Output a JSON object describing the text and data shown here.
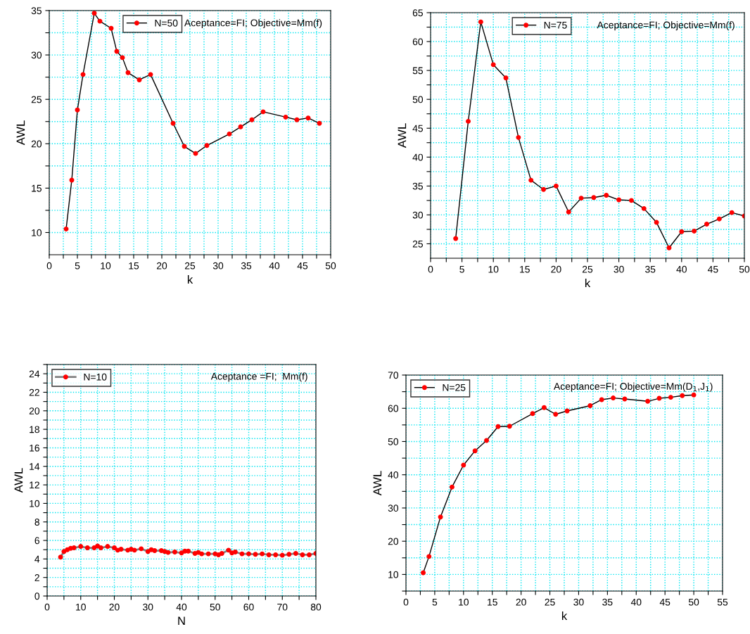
{
  "chart_data": [
    {
      "type": "line",
      "xlabel": "k",
      "ylabel": "AWL",
      "annotations": [
        "Aceptance=FI; Objective=Mm(f)"
      ],
      "grid": true,
      "legend": "top",
      "marker": "circle",
      "line_style": "solid",
      "xlim": [
        0,
        50
      ],
      "ylim": [
        7.5,
        35
      ],
      "xticks": [
        0,
        {
          "value": 2.5,
          "label": null
        },
        5,
        {
          "value": 7.5,
          "label": null
        },
        10,
        {
          "value": 12.5,
          "label": null
        },
        15,
        {
          "value": 17.5,
          "label": null
        },
        20,
        {
          "value": 22.5,
          "label": null
        },
        25,
        {
          "value": 27.5,
          "label": null
        },
        30,
        {
          "value": 32.5,
          "label": null
        },
        35,
        {
          "value": 37.5,
          "label": null
        },
        40,
        {
          "value": 42.5,
          "label": null
        },
        45,
        {
          "value": 47.5,
          "label": null
        },
        50
      ],
      "yticks": [
        10,
        {
          "value": 12.5,
          "label": null
        },
        15,
        {
          "value": 17.5,
          "label": null
        },
        20,
        {
          "value": 22.5,
          "label": null
        },
        25,
        {
          "value": 27.5,
          "label": null
        },
        30,
        {
          "value": 32.5,
          "label": null
        },
        35
      ],
      "series": [
        {
          "name": "N=50",
          "color": "#000000",
          "x": [
            3,
            4,
            5,
            6,
            8,
            9,
            11,
            12,
            13,
            14,
            16,
            18,
            22,
            24,
            26,
            28,
            32,
            34,
            36,
            38,
            42,
            44,
            46,
            48
          ],
          "values": [
            10.4,
            15.9,
            23.8,
            27.8,
            34.7,
            33.8,
            33.0,
            30.4,
            29.7,
            28.0,
            27.2,
            27.8,
            22.3,
            19.7,
            18.9,
            19.8,
            21.1,
            21.9,
            22.7,
            23.6,
            23.0,
            22.7,
            22.9,
            22.3
          ]
        }
      ]
    },
    {
      "type": "line",
      "xlabel": "k",
      "ylabel": "AWL",
      "annotations": [
        "Aceptance=FI; Objective=Mm(f)"
      ],
      "grid": true,
      "legend": "top",
      "marker": "circle",
      "line_style": "solid",
      "xlim": [
        0,
        50
      ],
      "ylim": [
        22.5,
        65
      ],
      "xticks": [
        0,
        {
          "value": 2.5,
          "label": null
        },
        5,
        {
          "value": 7.5,
          "label": null
        },
        10,
        {
          "value": 12.5,
          "label": null
        },
        15,
        {
          "value": 17.5,
          "label": null
        },
        20,
        {
          "value": 22.5,
          "label": null
        },
        25,
        {
          "value": 27.5,
          "label": null
        },
        30,
        {
          "value": 32.5,
          "label": null
        },
        35,
        {
          "value": 37.5,
          "label": null
        },
        40,
        {
          "value": 42.5,
          "label": null
        },
        45,
        {
          "value": 47.5,
          "label": null
        },
        50
      ],
      "yticks": [
        25,
        {
          "value": 27.5,
          "label": null
        },
        30,
        {
          "value": 32.5,
          "label": null
        },
        35,
        {
          "value": 37.5,
          "label": null
        },
        40,
        {
          "value": 42.5,
          "label": null
        },
        45,
        {
          "value": 47.5,
          "label": null
        },
        50,
        {
          "value": 52.5,
          "label": null
        },
        55,
        {
          "value": 57.5,
          "label": null
        },
        60,
        {
          "value": 62.5,
          "label": null
        },
        65
      ],
      "series": [
        {
          "name": "N=75",
          "color": "#000000",
          "x": [
            4,
            6,
            8,
            10,
            12,
            14,
            16,
            18,
            20,
            22,
            24,
            26,
            28,
            30,
            32,
            34,
            36,
            38,
            40,
            42,
            44,
            46,
            48,
            50
          ],
          "values": [
            25.9,
            46.2,
            63.4,
            56.0,
            53.7,
            43.4,
            36.0,
            34.4,
            35.0,
            30.5,
            32.9,
            33.0,
            33.4,
            32.6,
            32.5,
            31.1,
            28.7,
            24.3,
            27.1,
            27.2,
            28.4,
            29.3,
            30.4,
            29.8
          ]
        }
      ]
    },
    {
      "type": "line",
      "xlabel": "N",
      "ylabel": "AWL",
      "annotations": [
        "Aceptance =FI;  Mm(f)"
      ],
      "grid": true,
      "legend": "top left",
      "marker": "circle",
      "line_style": "solid",
      "xlim": [
        0,
        80
      ],
      "ylim": [
        0,
        25
      ],
      "xticks": [
        0,
        {
          "value": 5,
          "label": null
        },
        10,
        {
          "value": 15,
          "label": null
        },
        20,
        {
          "value": 25,
          "label": null
        },
        30,
        {
          "value": 35,
          "label": null
        },
        40,
        {
          "value": 45,
          "label": null
        },
        50,
        {
          "value": 55,
          "label": null
        },
        60,
        {
          "value": 65,
          "label": null
        },
        70,
        {
          "value": 75,
          "label": null
        },
        80
      ],
      "yticks": [
        0,
        {
          "value": 1,
          "label": null
        },
        2,
        {
          "value": 3,
          "label": null
        },
        4,
        {
          "value": 5,
          "label": null
        },
        6,
        {
          "value": 7,
          "label": null
        },
        8,
        {
          "value": 9,
          "label": null
        },
        10,
        {
          "value": 11,
          "label": null
        },
        12,
        {
          "value": 13,
          "label": null
        },
        14,
        {
          "value": 15,
          "label": null
        },
        16,
        {
          "value": 17,
          "label": null
        },
        18,
        {
          "value": 19,
          "label": null
        },
        20,
        {
          "value": 21,
          "label": null
        },
        22,
        {
          "value": 23,
          "label": null
        },
        24,
        {
          "value": 25,
          "label": null
        }
      ],
      "series": [
        {
          "name": "N=10",
          "color": "#808080",
          "x": [
            4,
            5,
            6,
            7,
            8,
            10,
            12,
            14,
            15,
            16,
            18,
            20,
            21,
            22,
            24,
            25,
            26,
            28,
            30,
            31,
            32,
            34,
            35,
            36,
            38,
            40,
            41,
            42,
            44,
            45,
            46,
            48,
            50,
            51,
            52,
            54,
            55,
            56,
            58,
            60,
            62,
            64,
            66,
            68,
            70,
            72,
            74,
            76,
            78,
            80
          ],
          "values": [
            4.2,
            4.8,
            5.0,
            5.15,
            5.2,
            5.35,
            5.2,
            5.2,
            5.4,
            5.2,
            5.35,
            5.2,
            4.95,
            5.05,
            4.95,
            5.05,
            4.95,
            5.1,
            4.8,
            5.0,
            4.9,
            4.9,
            4.8,
            4.7,
            4.75,
            4.65,
            4.85,
            4.85,
            4.6,
            4.7,
            4.55,
            4.55,
            4.55,
            4.45,
            4.6,
            4.95,
            4.65,
            4.75,
            4.55,
            4.55,
            4.5,
            4.55,
            4.45,
            4.45,
            4.4,
            4.5,
            4.6,
            4.45,
            4.45,
            4.6
          ]
        }
      ]
    },
    {
      "type": "line",
      "xlabel": "k",
      "ylabel": "AWL",
      "annotations": [
        "Aceptance=FI; Objective=Mm(D$_{1}$,J$_{1}$)"
      ],
      "grid": true,
      "legend": "top left",
      "marker": "circle",
      "line_style": "solid",
      "xlim": [
        0,
        55
      ],
      "ylim": [
        5,
        70
      ],
      "xticks": [
        0,
        {
          "value": 2.5,
          "label": null
        },
        5,
        {
          "value": 7.5,
          "label": null
        },
        10,
        {
          "value": 12.5,
          "label": null
        },
        15,
        {
          "value": 17.5,
          "label": null
        },
        20,
        {
          "value": 22.5,
          "label": null
        },
        25,
        {
          "value": 27.5,
          "label": null
        },
        30,
        {
          "value": 32.5,
          "label": null
        },
        35,
        {
          "value": 37.5,
          "label": null
        },
        40,
        {
          "value": 42.5,
          "label": null
        },
        45,
        {
          "value": 47.5,
          "label": null
        },
        50,
        {
          "value": 52.5,
          "label": null
        },
        55
      ],
      "yticks": [
        {
          "value": 5,
          "label": null
        },
        10,
        {
          "value": 15,
          "label": null
        },
        20,
        {
          "value": 25,
          "label": null
        },
        30,
        {
          "value": 35,
          "label": null
        },
        40,
        {
          "value": 45,
          "label": null
        },
        50,
        {
          "value": 55,
          "label": null
        },
        60,
        {
          "value": 65,
          "label": null
        },
        70
      ],
      "series": [
        {
          "name": "N=25",
          "color": "#000000",
          "x": [
            3,
            4,
            6,
            8,
            10,
            12,
            14,
            16,
            18,
            22,
            24,
            26,
            28,
            32,
            34,
            36,
            38,
            42,
            44,
            46,
            48,
            50
          ],
          "values": [
            10.5,
            15.4,
            27.3,
            36.3,
            42.9,
            47.2,
            50.3,
            54.5,
            54.6,
            58.4,
            60.2,
            58.2,
            59.2,
            60.8,
            62.6,
            63.1,
            62.8,
            62.1,
            63.0,
            63.3,
            63.8,
            64.0
          ]
        }
      ]
    }
  ]
}
